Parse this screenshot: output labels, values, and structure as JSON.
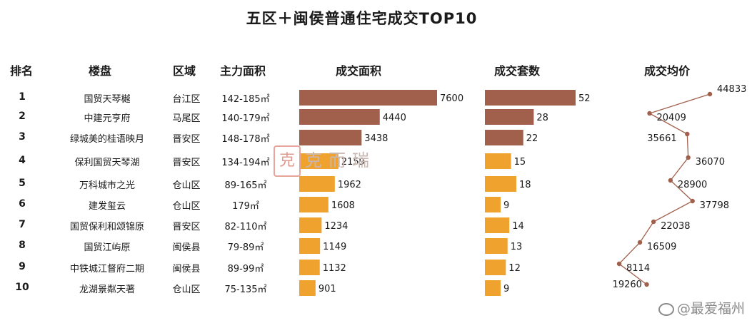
{
  "title": "五区＋闽侯普通住宅成交TOP10",
  "headers": {
    "rank": "排名",
    "name": "楼盘",
    "district": "区域",
    "area": "主力面积",
    "deal_area": "成交面积",
    "deal_units": "成交套数",
    "avg_price": "成交均价"
  },
  "rows": [
    {
      "rank": "1",
      "name": "国贸天琴樾",
      "district": "台江区",
      "area": "142-185㎡"
    },
    {
      "rank": "2",
      "name": "中建元亨府",
      "district": "马尾区",
      "area": "140-179㎡"
    },
    {
      "rank": "3",
      "name": "绿城美的桂语映月",
      "district": "晋安区",
      "area": "148-178㎡"
    },
    {
      "rank": "4",
      "name": "保利国贸天琴湖",
      "district": "晋安区",
      "area": "134-194㎡"
    },
    {
      "rank": "5",
      "name": "万科城市之光",
      "district": "仓山区",
      "area": "89-165㎡"
    },
    {
      "rank": "6",
      "name": "建发玺云",
      "district": "仓山区",
      "area": "179㎡"
    },
    {
      "rank": "7",
      "name": "国贸保利和颂锦原",
      "district": "晋安区",
      "area": "82-110㎡"
    },
    {
      "rank": "8",
      "name": "国贸江屿原",
      "district": "闽侯县",
      "area": "79-89㎡"
    },
    {
      "rank": "9",
      "name": "中铁城江督府二期",
      "district": "闽侯县",
      "area": "89-99㎡"
    },
    {
      "rank": "10",
      "name": "龙湖景粼天著",
      "district": "仓山区",
      "area": "75-135㎡"
    }
  ],
  "watermark": {
    "seal": "克",
    "text": "克而瑞"
  },
  "source": "@最爱福州",
  "colors": {
    "top3": "#a0604b",
    "rest": "#f0a22e",
    "line": "#a0604b"
  },
  "chart_data": [
    {
      "type": "bar",
      "orientation": "horizontal",
      "title": "成交面积",
      "categories": [
        "国贸天琴樾",
        "中建元亨府",
        "绿城美的桂语映月",
        "保利国贸天琴湖",
        "万科城市之光",
        "建发玺云",
        "国贸保利和颂锦原",
        "国贸江屿原",
        "中铁城江督府二期",
        "龙湖景粼天著"
      ],
      "values": [
        7600,
        4440,
        3438,
        2159,
        1962,
        1608,
        1234,
        1149,
        1132,
        901
      ]
    },
    {
      "type": "bar",
      "orientation": "horizontal",
      "title": "成交套数",
      "categories": [
        "国贸天琴樾",
        "中建元亨府",
        "绿城美的桂语映月",
        "保利国贸天琴湖",
        "万科城市之光",
        "建发玺云",
        "国贸保利和颂锦原",
        "国贸江屿原",
        "中铁城江督府二期",
        "龙湖景粼天著"
      ],
      "values": [
        52,
        28,
        22,
        15,
        18,
        9,
        14,
        13,
        12,
        9
      ]
    },
    {
      "type": "line",
      "orientation": "vertical",
      "title": "成交均价",
      "categories": [
        "国贸天琴樾",
        "中建元亨府",
        "绿城美的桂语映月",
        "保利国贸天琴湖",
        "万科城市之光",
        "建发玺云",
        "国贸保利和颂锦原",
        "国贸江屿原",
        "中铁城江督府二期",
        "龙湖景粼天著"
      ],
      "values": [
        44833,
        20409,
        35661,
        36070,
        28900,
        37798,
        22038,
        16509,
        8114,
        19260
      ]
    }
  ]
}
